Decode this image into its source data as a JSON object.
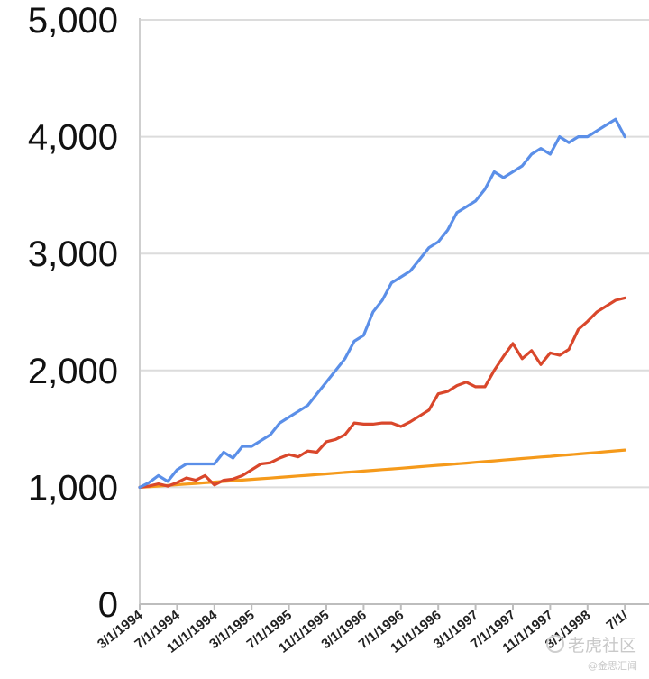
{
  "chart_data": {
    "type": "line",
    "title": "",
    "xlabel": "",
    "ylabel": "",
    "ylim": [
      0,
      5000
    ],
    "yticks": [
      0,
      1000,
      2000,
      3000,
      4000,
      5000
    ],
    "ytick_labels": [
      "0",
      "1,000",
      "2,000",
      "3,000",
      "4,000",
      "5,000"
    ],
    "grid": true,
    "legend": "none",
    "x_tick_labels": [
      "3/1/1994",
      "7/1/1994",
      "11/1/1994",
      "3/1/1995",
      "7/1/1995",
      "11/1/1995",
      "3/1/1996",
      "7/1/1996",
      "11/1/1996",
      "3/1/1997",
      "7/1/1997",
      "11/1/1997",
      "3/1/1998",
      "7/1/"
    ],
    "x": [
      "3/1/1994",
      "4/1/1994",
      "5/1/1994",
      "6/1/1994",
      "7/1/1994",
      "8/1/1994",
      "9/1/1994",
      "10/1/1994",
      "11/1/1994",
      "12/1/1994",
      "1/1/1995",
      "2/1/1995",
      "3/1/1995",
      "4/1/1995",
      "5/1/1995",
      "6/1/1995",
      "7/1/1995",
      "8/1/1995",
      "9/1/1995",
      "10/1/1995",
      "11/1/1995",
      "12/1/1995",
      "1/1/1996",
      "2/1/1996",
      "3/1/1996",
      "4/1/1996",
      "5/1/1996",
      "6/1/1996",
      "7/1/1996",
      "8/1/1996",
      "9/1/1996",
      "10/1/1996",
      "11/1/1996",
      "12/1/1996",
      "1/1/1997",
      "2/1/1997",
      "3/1/1997",
      "4/1/1997",
      "5/1/1997",
      "6/1/1997",
      "7/1/1997",
      "8/1/1997",
      "9/1/1997",
      "10/1/1997",
      "11/1/1997",
      "12/1/1997",
      "1/1/1998",
      "2/1/1998",
      "3/1/1998",
      "4/1/1998",
      "5/1/1998",
      "6/1/1998",
      "7/1/1998"
    ],
    "series": [
      {
        "color": "#5b8fe8",
        "values": [
          1000,
          1040,
          1100,
          1050,
          1150,
          1200,
          1200,
          1200,
          1200,
          1300,
          1250,
          1350,
          1350,
          1400,
          1450,
          1550,
          1600,
          1650,
          1700,
          1800,
          1900,
          2000,
          2100,
          2250,
          2300,
          2500,
          2600,
          2750,
          2800,
          2850,
          2950,
          3050,
          3100,
          3200,
          3350,
          3400,
          3450,
          3550,
          3700,
          3650,
          3700,
          3750,
          3850,
          3900,
          3850,
          4000,
          3950,
          4000,
          4000,
          4050,
          4100,
          4150,
          4000
        ]
      },
      {
        "color": "#d9472b",
        "values": [
          1000,
          1010,
          1030,
          1010,
          1040,
          1080,
          1060,
          1100,
          1020,
          1060,
          1070,
          1100,
          1150,
          1200,
          1210,
          1250,
          1280,
          1260,
          1310,
          1300,
          1390,
          1410,
          1450,
          1550,
          1540,
          1540,
          1550,
          1550,
          1520,
          1560,
          1610,
          1660,
          1800,
          1820,
          1870,
          1900,
          1860,
          1860,
          2000,
          2120,
          2230,
          2100,
          2170,
          2050,
          2150,
          2130,
          2180,
          2350,
          2420,
          2500,
          2550,
          2600,
          2620
        ]
      },
      {
        "color": "#f59a1b",
        "values": [
          1000,
          1005,
          1011,
          1016,
          1022,
          1028,
          1033,
          1039,
          1045,
          1050,
          1056,
          1062,
          1068,
          1073,
          1079,
          1085,
          1091,
          1097,
          1103,
          1109,
          1115,
          1121,
          1127,
          1133,
          1139,
          1145,
          1151,
          1157,
          1163,
          1169,
          1176,
          1182,
          1188,
          1194,
          1201,
          1207,
          1214,
          1220,
          1226,
          1233,
          1239,
          1246,
          1252,
          1259,
          1265,
          1272,
          1278,
          1285,
          1292,
          1298,
          1305,
          1312,
          1319
        ]
      }
    ]
  },
  "watermark": {
    "line1": "老虎社区",
    "line2": "@金思汇闻"
  }
}
